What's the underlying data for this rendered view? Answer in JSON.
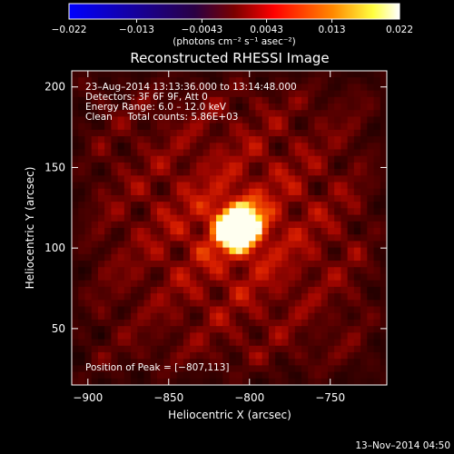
{
  "chart_data": {
    "type": "heatmap",
    "title": "Reconstructed RHESSI Image",
    "xlabel": "Heliocentric X (arcsec)",
    "ylabel": "Heliocentric Y (arcsec)",
    "xlim": [
      -910,
      -715
    ],
    "ylim": [
      15,
      210
    ],
    "x_ticks": [
      -900,
      -850,
      -800,
      -750
    ],
    "x_tick_labels": [
      "−900",
      "−850",
      "−800",
      "−750"
    ],
    "y_ticks": [
      50,
      100,
      150,
      200
    ],
    "y_tick_labels": [
      "50",
      "100",
      "150",
      "200"
    ],
    "grid": false,
    "peak": {
      "x": -807,
      "y": 113
    },
    "colorbar": {
      "range": [
        -0.022,
        0.022
      ],
      "ticks": [
        -0.022,
        -0.013,
        -0.0043,
        0.0043,
        0.013,
        0.022
      ],
      "tick_labels": [
        "−0.022",
        "−0.013",
        "−0.0043",
        "0.0043",
        "0.013",
        "0.022"
      ],
      "unit_label": "(photons cm⁻² s⁻¹ asec⁻²)",
      "colors": [
        "#0000ff",
        "#2a0044",
        "#7a0000",
        "#ff0000",
        "#ff8a00",
        "#ffff40",
        "#ffffff"
      ]
    },
    "annotations": [
      "23–Aug–2014 13:13:36.000 to 13:14:48.000",
      "Detectors: 3F 6F 9F, Att 0",
      "Energy Range: 6.0 – 12.0 keV",
      "Clean     Total counts: 5.86E+03",
      "Position of Peak = [−807,113]"
    ],
    "footer_date": "13–Nov–2014 04:50"
  }
}
